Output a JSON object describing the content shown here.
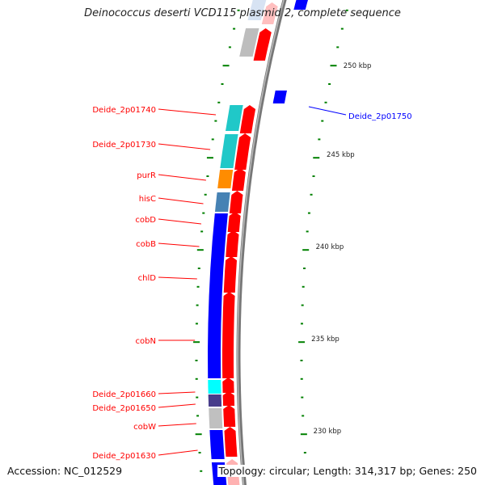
{
  "title": "Deinococcus deserti VCD115 plasmid 2, complete sequence",
  "accession": "Accession: NC_012529",
  "summary": "Topology: circular; Length: 314,317 bp; Genes: 250",
  "colors": {
    "forward_cds": "#ff0000",
    "reverse_cds": "#0000ff",
    "backbone": "#888888",
    "ticks": "#008000",
    "label_fwd": "#ff0000",
    "label_rev": "#0000ff"
  },
  "tick_labels": [
    "250 kbp",
    "245 kbp",
    "240 kbp",
    "235 kbp",
    "230 kbp"
  ],
  "gene_labels": [
    {
      "text": "Deide_2p01740",
      "strand": "forward"
    },
    {
      "text": "Deide_2p01730",
      "strand": "forward"
    },
    {
      "text": "purR",
      "strand": "forward"
    },
    {
      "text": "hisC",
      "strand": "forward"
    },
    {
      "text": "cobD",
      "strand": "forward"
    },
    {
      "text": "cobB",
      "strand": "forward"
    },
    {
      "text": "chlD",
      "strand": "forward"
    },
    {
      "text": "cobN",
      "strand": "forward"
    },
    {
      "text": "Deide_2p01660",
      "strand": "forward"
    },
    {
      "text": "Deide_2p01650",
      "strand": "forward"
    },
    {
      "text": "cobW",
      "strand": "forward"
    },
    {
      "text": "Deide_2p01630",
      "strand": "forward"
    },
    {
      "text": "Deide_2p01750",
      "strand": "reverse"
    }
  ]
}
